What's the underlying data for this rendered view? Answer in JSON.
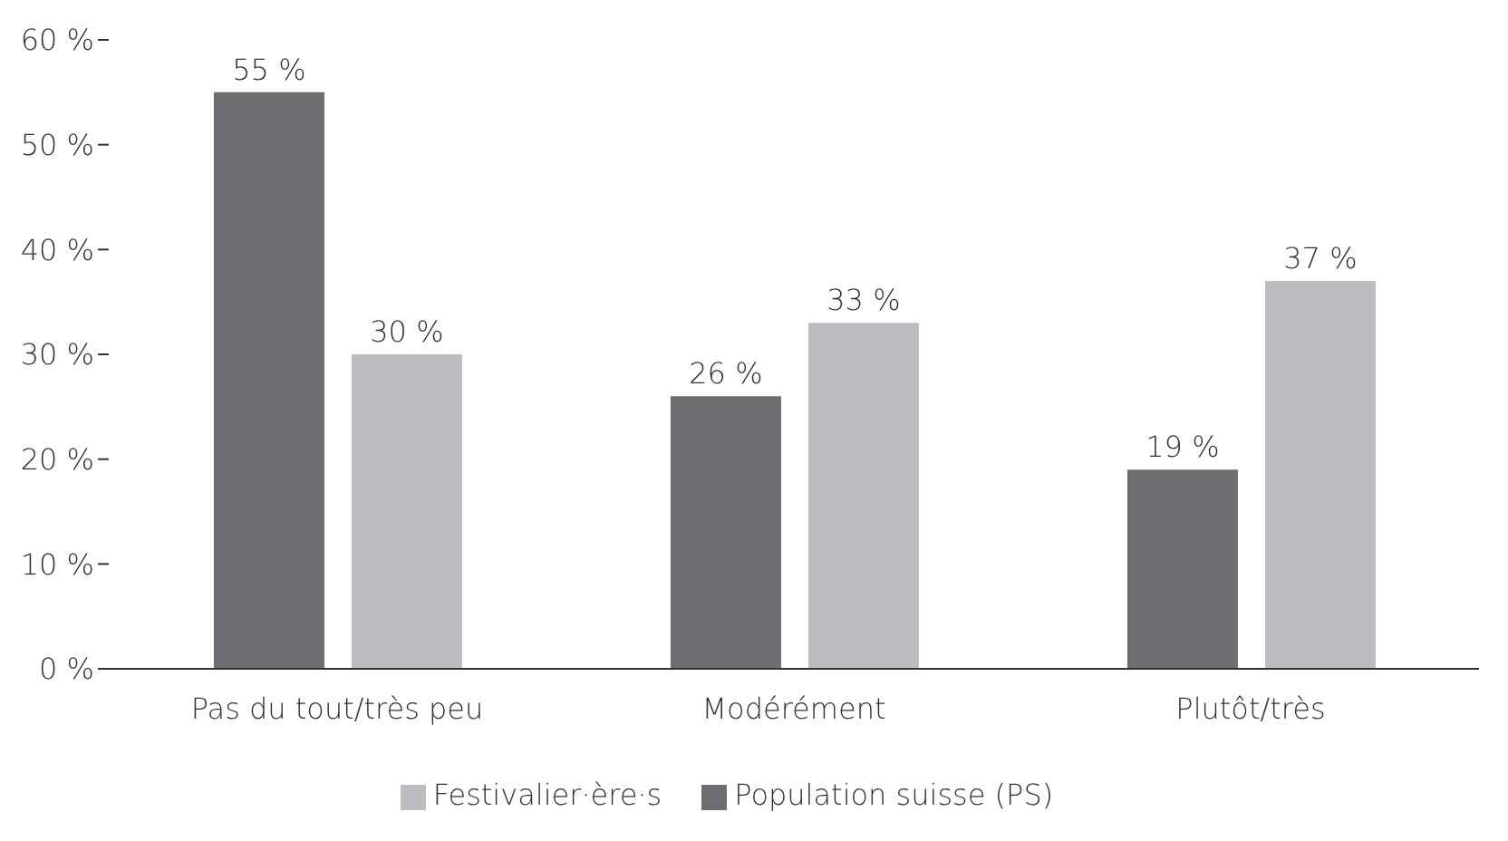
{
  "chart_data": {
    "type": "bar",
    "categories": [
      "Pas du tout/très peu",
      "Modérément",
      "Plutôt/très"
    ],
    "series": [
      {
        "name": "Population suisse (PS)",
        "color": "#6d6e71",
        "values": [
          55,
          26,
          19
        ],
        "value_labels": [
          "55 %",
          "26 %",
          "19 %"
        ]
      },
      {
        "name": "Festivalier·ère·s",
        "color": "#bcbdc0",
        "values": [
          30,
          33,
          37
        ],
        "value_labels": [
          "30 %",
          "33 %",
          "37 %"
        ]
      }
    ],
    "ylim": [
      0,
      60
    ],
    "yticks": [
      {
        "value": 0,
        "label": "0 %"
      },
      {
        "value": 10,
        "label": "10 %"
      },
      {
        "value": 20,
        "label": "20 %"
      },
      {
        "value": 30,
        "label": "30 %"
      },
      {
        "value": 40,
        "label": "40 %"
      },
      {
        "value": 50,
        "label": "50 %"
      },
      {
        "value": 60,
        "label": "60 %"
      }
    ],
    "grid": false,
    "legend": "bottom"
  }
}
